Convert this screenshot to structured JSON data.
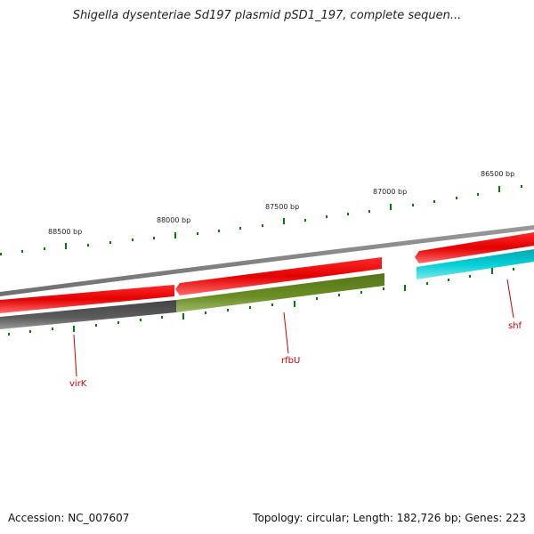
{
  "header": {
    "title": "Shigella dysenteriae Sd197 plasmid pSD1_197, complete sequen..."
  },
  "footer": {
    "accession": "Accession: NC_007607",
    "topology": "Topology: circular; Length: 182,726 bp; Genes: 223"
  },
  "scale_labels": [
    {
      "text": "88500 bp",
      "bp": 88500
    },
    {
      "text": "88000 bp",
      "bp": 88000
    },
    {
      "text": "87500 bp",
      "bp": 87500
    },
    {
      "text": "87000 bp",
      "bp": 87000
    },
    {
      "text": "86500 bp",
      "bp": 86500
    }
  ],
  "genes": [
    {
      "name": "virK",
      "color": "#555555"
    },
    {
      "name": "rfbU",
      "color": "#6b8e23"
    },
    {
      "name": "shf",
      "color": "#00c5cd"
    }
  ],
  "colors": {
    "backbone": "#7f7f7f",
    "feature_red": "#ee0000",
    "tick": "#008000",
    "label": "#cc0000"
  }
}
